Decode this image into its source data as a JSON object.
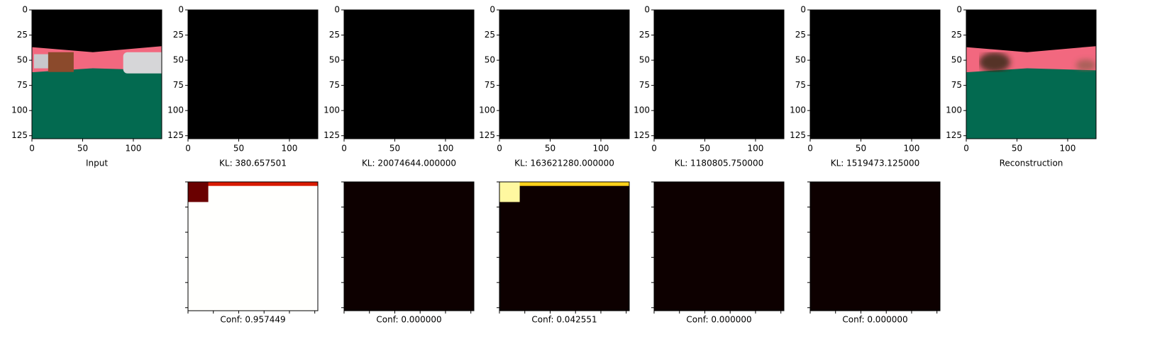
{
  "chart_data": {
    "type": "image-grid",
    "top_labels": [
      "Input",
      "KL: 380.657501",
      "KL: 20074644.000000",
      "KL: 163621280.000000",
      "KL: 1180805.750000",
      "KL: 1519473.125000",
      "Reconstruction"
    ],
    "bottom_labels": [
      "Conf: 0.957449",
      "Conf: 0.000000",
      "Conf: 0.042551",
      "Conf: 0.000000",
      "Conf: 0.000000"
    ],
    "xlim": [
      0,
      128
    ],
    "ylim": [
      128,
      0
    ],
    "xticks": [
      0,
      50,
      100
    ],
    "yticks": [
      0,
      25,
      50,
      75,
      100,
      125
    ],
    "heat_ticks": [
      0,
      25,
      50,
      75,
      100,
      125
    ]
  }
}
